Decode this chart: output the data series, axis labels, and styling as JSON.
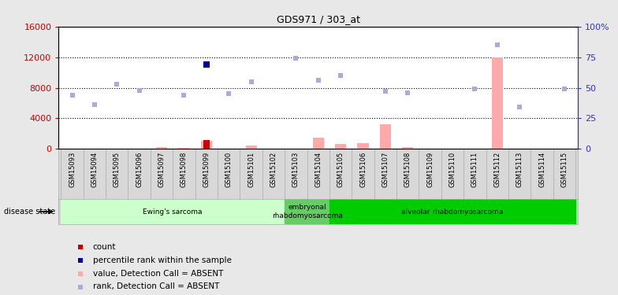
{
  "title": "GDS971 / 303_at",
  "samples": [
    "GSM15093",
    "GSM15094",
    "GSM15095",
    "GSM15096",
    "GSM15097",
    "GSM15098",
    "GSM15099",
    "GSM15100",
    "GSM15101",
    "GSM15102",
    "GSM15103",
    "GSM15104",
    "GSM15105",
    "GSM15106",
    "GSM15107",
    "GSM15108",
    "GSM15109",
    "GSM15110",
    "GSM15111",
    "GSM15112",
    "GSM15113",
    "GSM15114",
    "GSM15115"
  ],
  "pink_bars": [
    0,
    0,
    0,
    0,
    200,
    100,
    1100,
    0,
    500,
    0,
    0,
    1500,
    700,
    800,
    3200,
    200,
    0,
    0,
    0,
    12000,
    0,
    0,
    0
  ],
  "red_bars": [
    0,
    0,
    0,
    0,
    0,
    0,
    1200,
    0,
    0,
    0,
    0,
    0,
    0,
    0,
    0,
    0,
    0,
    0,
    0,
    0,
    0,
    0,
    0
  ],
  "blue_squares_right": [
    null,
    null,
    null,
    null,
    null,
    null,
    69,
    null,
    null,
    null,
    null,
    null,
    null,
    null,
    null,
    null,
    null,
    null,
    null,
    null,
    null,
    null,
    null
  ],
  "light_blue_squares_right": [
    44,
    36,
    53,
    48,
    null,
    44,
    null,
    45,
    55,
    null,
    74,
    56,
    60,
    null,
    47,
    46,
    null,
    null,
    49,
    85,
    34,
    null,
    49
  ],
  "ylim_left": [
    0,
    16000
  ],
  "ylim_right": [
    0,
    100
  ],
  "yticks_left": [
    0,
    4000,
    8000,
    12000,
    16000
  ],
  "yticks_right": [
    0,
    25,
    50,
    75,
    100
  ],
  "ytick_labels_right": [
    "0",
    "25",
    "50",
    "75",
    "100%"
  ],
  "left_axis_color": "#cc0000",
  "right_axis_color": "#3333cc",
  "group_defs": [
    {
      "start": 0,
      "end": 10,
      "color": "#ccffcc",
      "label": "Ewing's sarcoma"
    },
    {
      "start": 10,
      "end": 12,
      "color": "#66cc66",
      "label": "embryonal\nrhabdomyosarcoma"
    },
    {
      "start": 12,
      "end": 23,
      "color": "#00cc00",
      "label": "alveolar rhabdomyosarcoma"
    }
  ],
  "disease_state_label": "disease state",
  "legend_items": [
    {
      "color": "#cc0000",
      "label": "count"
    },
    {
      "color": "#000099",
      "label": "percentile rank within the sample"
    },
    {
      "color": "#ffaaaa",
      "label": "value, Detection Call = ABSENT"
    },
    {
      "color": "#aaaadd",
      "label": "rank, Detection Call = ABSENT"
    }
  ],
  "plot_bg": "#ffffff",
  "fig_bg": "#e8e8e8",
  "bar_width": 0.5,
  "scale": 160
}
